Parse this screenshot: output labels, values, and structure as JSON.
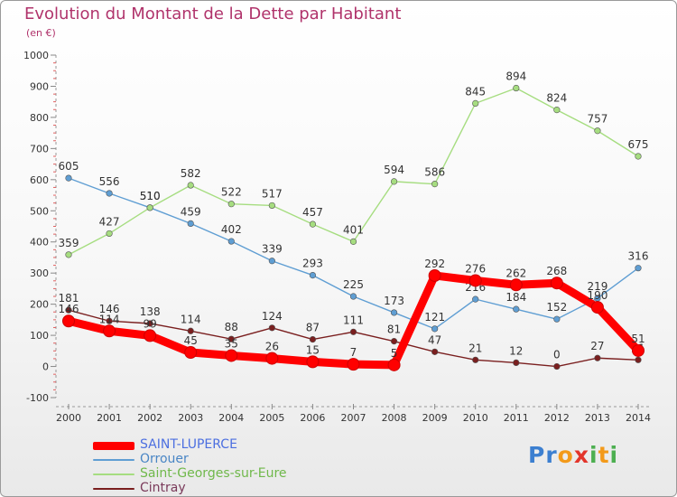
{
  "title": "Evolution du Montant de la Dette par Habitant",
  "unit": "(en €)",
  "chart_data": {
    "type": "line",
    "title": "Evolution du Montant de la Dette par Habitant",
    "subtitle": "(en €)",
    "x": [
      "2000",
      "2001",
      "2002",
      "2003",
      "2004",
      "2005",
      "2006",
      "2007",
      "2008",
      "2009",
      "2010",
      "2011",
      "2012",
      "2013",
      "2014"
    ],
    "ylim": [
      -100,
      1000
    ],
    "yticks": [
      "1000",
      "900",
      "800",
      "700",
      "600",
      "500",
      "400",
      "300",
      "200",
      "100",
      "0",
      "-100"
    ],
    "grid": false,
    "legend_position": "bottom-left",
    "series": [
      {
        "name": "SAINT-LUPERCE",
        "color": "#ff0000",
        "values": [
          146,
          114,
          99,
          45,
          35,
          26,
          15,
          7,
          5,
          292,
          276,
          262,
          268,
          190,
          51
        ],
        "labels": [
          "146",
          "114",
          "99",
          "45",
          "35",
          "26",
          "15",
          "7",
          "5",
          "292",
          "276",
          "262",
          "268",
          "190",
          "51"
        ]
      },
      {
        "name": "Orrouer",
        "color": "#5f9ed3",
        "values": [
          605,
          556,
          510,
          459,
          402,
          339,
          293,
          225,
          173,
          121,
          216,
          184,
          152,
          219,
          316
        ],
        "labels": [
          "605",
          "556",
          "510",
          "459",
          "402",
          "339",
          "293",
          "225",
          "173",
          "121",
          "216",
          "184",
          "152",
          "219",
          "316"
        ]
      },
      {
        "name": "Saint-Georges-sur-Eure",
        "color": "#a6dd80",
        "values": [
          359,
          427,
          510,
          582,
          522,
          517,
          457,
          401,
          594,
          586,
          845,
          894,
          824,
          757,
          675
        ],
        "labels": [
          "359",
          "427",
          "510",
          "582",
          "522",
          "517",
          "457",
          "401",
          "594",
          "586",
          "845",
          "894",
          "824",
          "757",
          "675"
        ]
      },
      {
        "name": "Cintray",
        "color": "#7a1f1f",
        "values": [
          181,
          146,
          138,
          114,
          88,
          124,
          87,
          111,
          81,
          47,
          21,
          12,
          0,
          27,
          21
        ],
        "labels": [
          "181",
          "146",
          "138",
          "114",
          "88",
          "124",
          "87",
          "111",
          "81",
          "47",
          "21",
          "12",
          "0",
          "27",
          "21"
        ]
      }
    ]
  },
  "logo": {
    "text": "Proxiti",
    "letters": [
      {
        "ch": "P",
        "color": "#3c7fd0"
      },
      {
        "ch": "r",
        "color": "#3c7fd0"
      },
      {
        "ch": "o",
        "color": "#f39a1a"
      },
      {
        "ch": "x",
        "color": "#e3352b"
      },
      {
        "ch": "i",
        "color": "#4caf50"
      },
      {
        "ch": "t",
        "color": "#f39a1a"
      },
      {
        "ch": "i",
        "color": "#4caf50"
      }
    ]
  }
}
